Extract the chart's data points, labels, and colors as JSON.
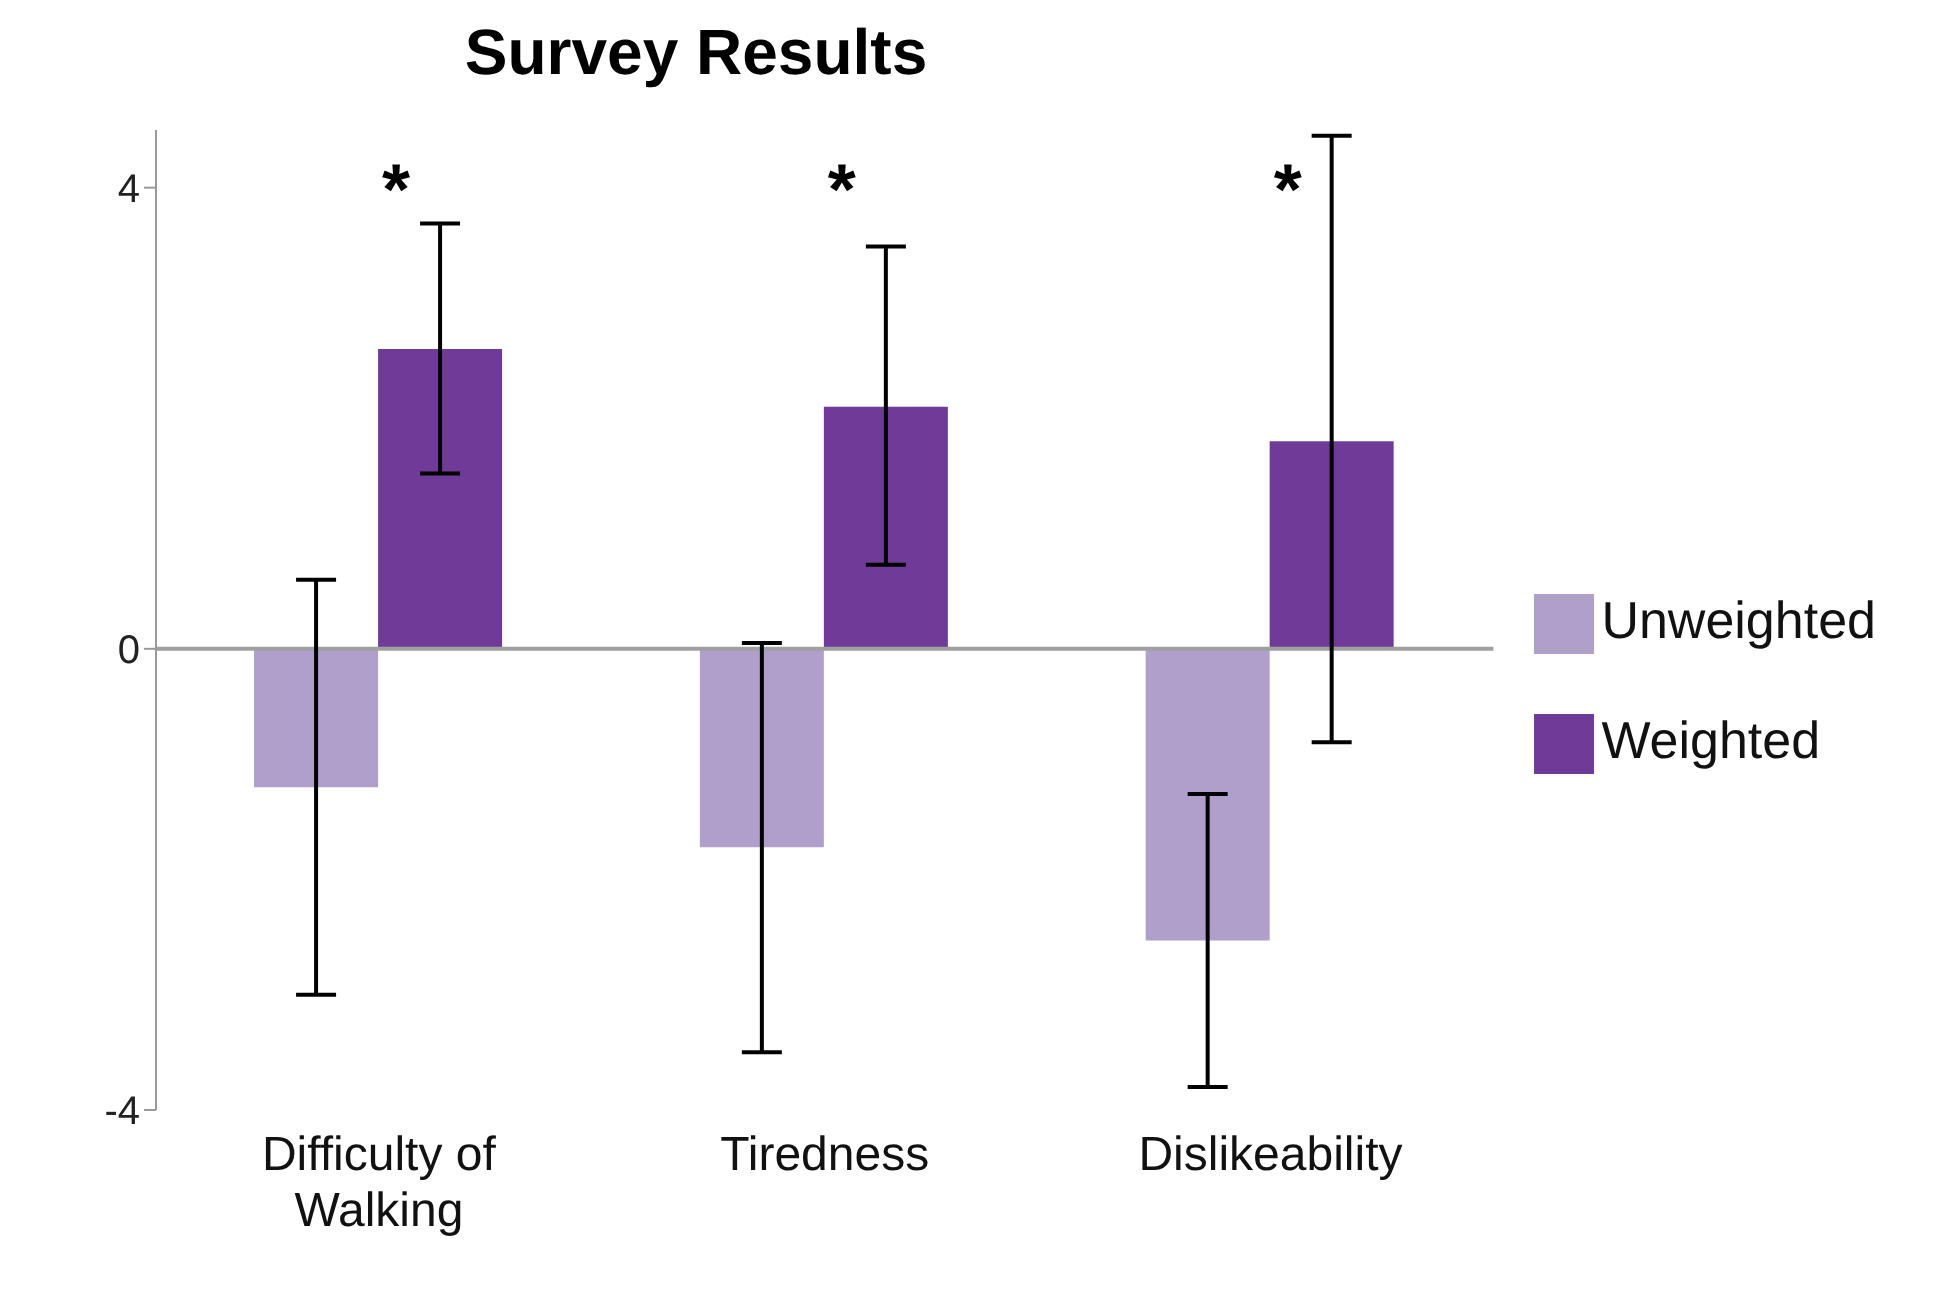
{
  "chart_data": {
    "type": "bar",
    "title": "Survey Results",
    "categories": [
      "Difficulty of Walking",
      "Tiredness",
      "Dislikeability"
    ],
    "series": [
      {
        "name": "Unweighted",
        "color": "#b09fcb",
        "values": [
          -1.2,
          -1.72,
          -2.53
        ],
        "errors": [
          [
            -3.0,
            0.6
          ],
          [
            -3.5,
            0.05
          ],
          [
            -3.8,
            -1.26
          ]
        ]
      },
      {
        "name": "Weighted",
        "color": "#703b98",
        "values": [
          2.6,
          2.1,
          1.8
        ],
        "errors": [
          [
            1.52,
            3.69
          ],
          [
            0.73,
            3.49
          ],
          [
            -0.81,
            4.45
          ]
        ]
      }
    ],
    "ylim": [
      -4,
      4.5
    ],
    "yticks": [
      -4,
      0,
      4
    ],
    "grid": false,
    "legend": "right",
    "ref_lines": [
      {
        "axis": "y",
        "value": 0,
        "color": "#a0a0a0"
      }
    ],
    "annotations": [
      "*",
      "*",
      "*"
    ]
  }
}
